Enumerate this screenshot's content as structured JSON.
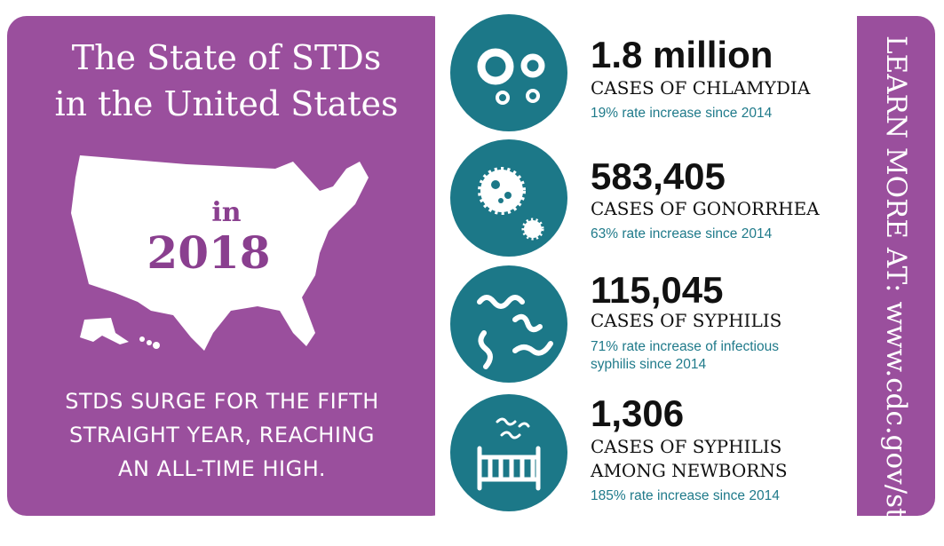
{
  "header": {
    "title_lines": [
      "The State of STDs",
      "in the United States"
    ],
    "year_prefix": "in",
    "year": "2018"
  },
  "tagline_lines": [
    "STDS SURGE FOR THE FIFTH",
    "STRAIGHT YEAR, REACHING",
    "AN ALL-TIME HIGH."
  ],
  "stats": [
    {
      "figure": "1.8 million",
      "label_lines": [
        "CASES OF CHLAMYDIA"
      ],
      "note_lines": [
        "19% rate increase since 2014"
      ]
    },
    {
      "figure": "583,405",
      "label_lines": [
        "CASES OF GONORRHEA"
      ],
      "note_lines": [
        "63% rate increase since 2014"
      ]
    },
    {
      "figure": "115,045",
      "label_lines": [
        "CASES OF SYPHILIS"
      ],
      "note_lines": [
        "71% rate increase of infectious",
        "syphilis since 2014"
      ]
    },
    {
      "figure": "1,306",
      "label_lines": [
        "CASES OF SYPHILIS",
        "AMONG NEWBORNS"
      ],
      "note_lines": [
        "185% rate increase since 2014"
      ]
    }
  ],
  "cta": "LEARN MORE AT: www.cdc.gov/std/"
}
